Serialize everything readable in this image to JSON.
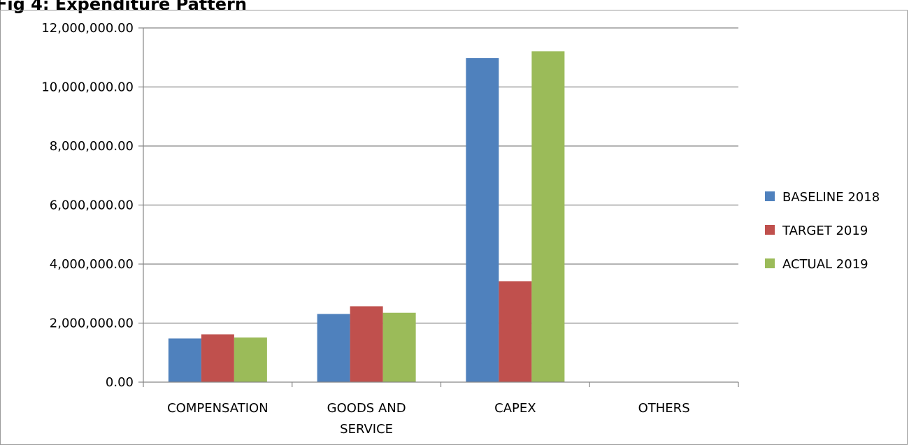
{
  "figure": {
    "title": "Fig 4: Expenditure Pattern"
  },
  "chart_data": {
    "type": "bar",
    "categories": [
      "COMPENSATION",
      "GOODS AND SERVICE",
      "CAPEX",
      "OTHERS"
    ],
    "category_lines": [
      [
        "COMPENSATION"
      ],
      [
        "GOODS AND",
        "SERVICE"
      ],
      [
        "CAPEX"
      ],
      [
        "OTHERS"
      ]
    ],
    "series": [
      {
        "name": "BASELINE 2018",
        "color": "#4f81bd",
        "values": [
          1480000,
          2310000,
          10980000,
          0
        ]
      },
      {
        "name": "TARGET 2019",
        "color": "#c0504d",
        "values": [
          1620000,
          2570000,
          3420000,
          0
        ]
      },
      {
        "name": "ACTUAL 2019",
        "color": "#9bbb59",
        "values": [
          1510000,
          2350000,
          11210000,
          0
        ]
      }
    ],
    "ylim": [
      0,
      12000000
    ],
    "yticks": [
      0,
      2000000,
      4000000,
      6000000,
      8000000,
      10000000,
      12000000
    ],
    "ytick_labels": [
      "0.00",
      "2,000,000.00",
      "4,000,000.00",
      "6,000,000.00",
      "8,000,000.00",
      "10,000,000.00",
      "12,000,000.00"
    ],
    "xlabel": "",
    "ylabel": "",
    "grid": true,
    "legend_position": "right"
  }
}
